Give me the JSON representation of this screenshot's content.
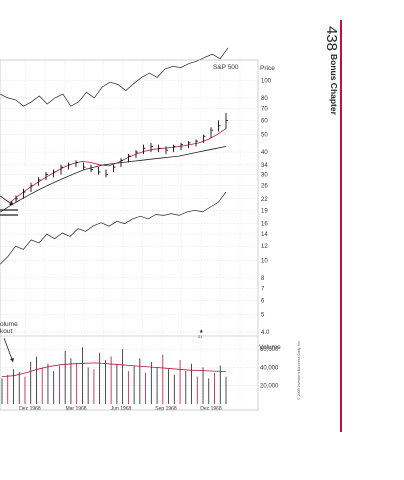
{
  "page": {
    "number": "438",
    "chapter": "Bonus Chapter",
    "copyright": "© 2009 Investor's Business Daily, Inc.",
    "accent_color": "#b5173b"
  },
  "chart_data": {
    "type": "line",
    "price_axis": {
      "label": "Price",
      "scale": "log",
      "ticks": [
        "100",
        "80",
        "70",
        "60",
        "50",
        "40",
        "34",
        "30",
        "26",
        "22",
        "19",
        "16",
        "14",
        "12",
        "10",
        "8",
        "7",
        "6",
        "5",
        "4.0"
      ]
    },
    "volume_axis": {
      "label": "Volume",
      "ticks": [
        "60,000",
        "40,000",
        "20,000"
      ]
    },
    "x_ticks": [
      "Dec 1968",
      "Mar 1968",
      "Jun 1968",
      "Sep 1968",
      "Dec 1968"
    ],
    "labels": {
      "index": "S&P 500",
      "annotation_line1": "olume",
      "annotation_line2": "kout",
      "marker_note": "21"
    },
    "grid": true,
    "series": [
      {
        "kind": "sp500",
        "values": [
          84,
          80,
          78,
          72,
          76,
          82,
          74,
          80,
          84,
          72,
          76,
          86,
          80,
          92,
          98,
          95,
          88,
          96,
          104,
          110,
          104,
          116,
          120,
          118,
          124,
          128,
          134,
          140,
          132,
          152
        ]
      },
      {
        "kind": "relative_strength",
        "values": [
          9.5,
          10.5,
          12,
          11.5,
          13,
          12.5,
          14,
          13.2,
          14.2,
          13.6,
          15,
          14.5,
          15.6,
          16.2,
          15.5,
          16.5,
          16,
          17,
          17.6,
          17,
          18,
          17.8,
          18.2,
          17.8,
          18.6,
          19,
          18.6,
          19.8,
          21,
          24
        ]
      },
      {
        "kind": "long_moving_average",
        "values": [
          18.5,
          20,
          21.5,
          23,
          24.5,
          26,
          27.5,
          29,
          30.5,
          32,
          33,
          34,
          34.5,
          35,
          35.5,
          36,
          36.5,
          37,
          37.5,
          38,
          39,
          40,
          41,
          42,
          43
        ]
      },
      {
        "kind": "short_moving_average",
        "values": [
          21,
          23,
          25,
          27,
          29,
          31,
          33,
          34.5,
          35.5,
          35,
          34,
          33.5,
          35,
          37,
          39,
          40.5,
          41.5,
          42,
          42.5,
          43,
          44,
          45,
          47,
          50,
          54
        ]
      },
      {
        "kind": "price_bars",
        "bars": [
          [
            21,
            23,
            22
          ],
          [
            22,
            25,
            24
          ],
          [
            24,
            27,
            26
          ],
          [
            26,
            29,
            28
          ],
          [
            28,
            31,
            30
          ],
          [
            29,
            32,
            31
          ],
          [
            30,
            34,
            33
          ],
          [
            32,
            35,
            34
          ],
          [
            33,
            36,
            35
          ],
          [
            32,
            35,
            33
          ],
          [
            31,
            34,
            32
          ],
          [
            30,
            33,
            31
          ],
          [
            29,
            32,
            30
          ],
          [
            31,
            34,
            33
          ],
          [
            33,
            37,
            36
          ],
          [
            35,
            39,
            38
          ],
          [
            37,
            41,
            40
          ],
          [
            39,
            44,
            42
          ],
          [
            40,
            45,
            43
          ],
          [
            40,
            44,
            42
          ],
          [
            39,
            43,
            41
          ],
          [
            40,
            44,
            43
          ],
          [
            41,
            45,
            44
          ],
          [
            42,
            46,
            45
          ],
          [
            43,
            47,
            46
          ],
          [
            45,
            50,
            49
          ],
          [
            48,
            55,
            53
          ],
          [
            52,
            60,
            56
          ],
          [
            54,
            66,
            60
          ]
        ]
      },
      {
        "kind": "volume",
        "values": [
          28000,
          32000,
          38000,
          35000,
          30000,
          46000,
          52000,
          40000,
          44000,
          36000,
          42000,
          58000,
          50000,
          45000,
          62000,
          40000,
          38000,
          56000,
          48000,
          52000,
          44000,
          60000,
          36000,
          42000,
          50000,
          34000,
          46000,
          40000,
          54000,
          38000,
          32000,
          48000,
          36000,
          44000,
          30000,
          40000,
          28000,
          34000,
          42000,
          30000
        ]
      },
      {
        "kind": "volume_average",
        "values": [
          30000,
          31000,
          34000,
          38000,
          41000,
          43000,
          44000,
          44500,
          45000,
          44000,
          43000,
          42000,
          41000,
          40000,
          39000,
          38000,
          37000,
          36500,
          36000,
          35500
        ]
      }
    ]
  }
}
